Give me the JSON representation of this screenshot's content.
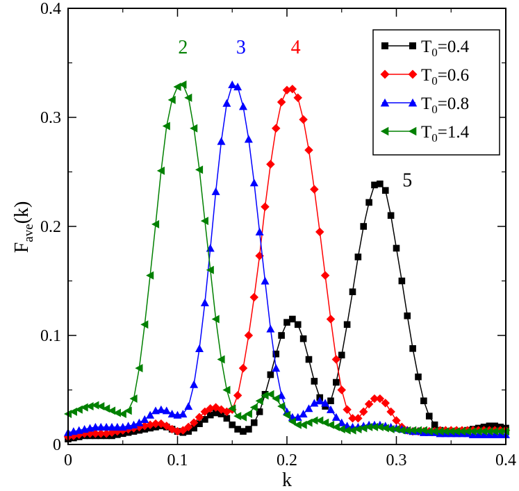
{
  "chart_data": {
    "type": "line",
    "xlabel": "k",
    "ylabel": "F",
    "ylabel_sub": "ave",
    "ylabel_suffix": "(k)",
    "xlim": [
      0,
      0.4
    ],
    "ylim": [
      0,
      0.4
    ],
    "x_ticks": [
      "0",
      "0.1",
      "0.2",
      "0.3",
      "0.4"
    ],
    "y_ticks": [
      "0",
      "0.1",
      "0.2",
      "0.3",
      "0.4"
    ],
    "grid": false,
    "legend_position": "top-right",
    "series": [
      {
        "name": "T0=0.4",
        "name_base": "T",
        "name_sub": "0",
        "name_value": "=0.4",
        "color": "#000000",
        "marker": "square",
        "x": [
          0,
          0.005,
          0.01,
          0.015,
          0.02,
          0.025,
          0.03,
          0.035,
          0.04,
          0.045,
          0.05,
          0.055,
          0.06,
          0.065,
          0.07,
          0.075,
          0.08,
          0.085,
          0.09,
          0.095,
          0.1,
          0.105,
          0.11,
          0.115,
          0.12,
          0.125,
          0.13,
          0.135,
          0.14,
          0.145,
          0.15,
          0.155,
          0.16,
          0.165,
          0.17,
          0.175,
          0.18,
          0.185,
          0.19,
          0.195,
          0.2,
          0.205,
          0.21,
          0.215,
          0.22,
          0.225,
          0.23,
          0.235,
          0.24,
          0.245,
          0.25,
          0.255,
          0.26,
          0.265,
          0.27,
          0.275,
          0.28,
          0.285,
          0.29,
          0.295,
          0.3,
          0.305,
          0.31,
          0.315,
          0.32,
          0.325,
          0.33,
          0.335,
          0.34,
          0.345,
          0.35,
          0.355,
          0.36,
          0.365,
          0.37,
          0.375,
          0.38,
          0.385,
          0.39,
          0.395,
          0.4
        ],
        "y": [
          0.005,
          0.006,
          0.007,
          0.008,
          0.008,
          0.008,
          0.008,
          0.008,
          0.008,
          0.009,
          0.01,
          0.011,
          0.012,
          0.013,
          0.014,
          0.015,
          0.016,
          0.017,
          0.016,
          0.014,
          0.012,
          0.011,
          0.012,
          0.015,
          0.019,
          0.023,
          0.027,
          0.029,
          0.028,
          0.024,
          0.018,
          0.014,
          0.012,
          0.014,
          0.02,
          0.03,
          0.046,
          0.064,
          0.083,
          0.1,
          0.112,
          0.115,
          0.11,
          0.097,
          0.078,
          0.058,
          0.043,
          0.035,
          0.04,
          0.057,
          0.082,
          0.11,
          0.14,
          0.172,
          0.2,
          0.222,
          0.238,
          0.239,
          0.233,
          0.21,
          0.18,
          0.15,
          0.118,
          0.088,
          0.062,
          0.04,
          0.026,
          0.018,
          0.013,
          0.011,
          0.011,
          0.011,
          0.012,
          0.013,
          0.014,
          0.015,
          0.016,
          0.017,
          0.017,
          0.016,
          0.015
        ]
      },
      {
        "name": "T0=0.6",
        "name_base": "T",
        "name_sub": "0",
        "name_value": "=0.6",
        "color": "#ff0000",
        "marker": "diamond",
        "x": [
          0,
          0.005,
          0.01,
          0.015,
          0.02,
          0.025,
          0.03,
          0.035,
          0.04,
          0.045,
          0.05,
          0.055,
          0.06,
          0.065,
          0.07,
          0.075,
          0.08,
          0.085,
          0.09,
          0.095,
          0.1,
          0.105,
          0.11,
          0.115,
          0.12,
          0.125,
          0.13,
          0.135,
          0.14,
          0.145,
          0.15,
          0.155,
          0.16,
          0.165,
          0.17,
          0.175,
          0.18,
          0.185,
          0.19,
          0.195,
          0.2,
          0.205,
          0.21,
          0.215,
          0.22,
          0.225,
          0.23,
          0.235,
          0.24,
          0.245,
          0.25,
          0.255,
          0.26,
          0.265,
          0.27,
          0.275,
          0.28,
          0.285,
          0.29,
          0.295,
          0.3,
          0.305,
          0.31,
          0.315,
          0.32,
          0.325,
          0.33,
          0.335,
          0.34,
          0.345,
          0.35,
          0.355,
          0.36,
          0.365,
          0.37,
          0.375,
          0.38,
          0.385,
          0.39,
          0.395,
          0.4
        ],
        "y": [
          0.007,
          0.008,
          0.009,
          0.01,
          0.01,
          0.01,
          0.01,
          0.01,
          0.011,
          0.012,
          0.013,
          0.014,
          0.015,
          0.016,
          0.017,
          0.018,
          0.019,
          0.019,
          0.017,
          0.014,
          0.012,
          0.013,
          0.016,
          0.02,
          0.025,
          0.03,
          0.033,
          0.034,
          0.032,
          0.03,
          0.032,
          0.045,
          0.07,
          0.1,
          0.135,
          0.173,
          0.218,
          0.257,
          0.29,
          0.314,
          0.325,
          0.326,
          0.318,
          0.298,
          0.27,
          0.234,
          0.195,
          0.155,
          0.115,
          0.078,
          0.05,
          0.032,
          0.024,
          0.024,
          0.03,
          0.037,
          0.042,
          0.042,
          0.038,
          0.03,
          0.022,
          0.016,
          0.013,
          0.012,
          0.012,
          0.012,
          0.012,
          0.012,
          0.013,
          0.013,
          0.013,
          0.013,
          0.013,
          0.013,
          0.013,
          0.013,
          0.013,
          0.013,
          0.013,
          0.013,
          0.013
        ]
      },
      {
        "name": "T0=0.8",
        "name_base": "T",
        "name_sub": "0",
        "name_value": "=0.8",
        "color": "#0000ff",
        "marker": "triangle-up",
        "x": [
          0,
          0.005,
          0.01,
          0.015,
          0.02,
          0.025,
          0.03,
          0.035,
          0.04,
          0.045,
          0.05,
          0.055,
          0.06,
          0.065,
          0.07,
          0.075,
          0.08,
          0.085,
          0.09,
          0.095,
          0.1,
          0.105,
          0.11,
          0.115,
          0.12,
          0.125,
          0.13,
          0.135,
          0.14,
          0.145,
          0.15,
          0.155,
          0.16,
          0.165,
          0.17,
          0.175,
          0.18,
          0.185,
          0.19,
          0.195,
          0.2,
          0.205,
          0.21,
          0.215,
          0.22,
          0.225,
          0.23,
          0.235,
          0.24,
          0.245,
          0.25,
          0.255,
          0.26,
          0.265,
          0.27,
          0.275,
          0.28,
          0.285,
          0.29,
          0.295,
          0.3,
          0.305,
          0.31,
          0.315,
          0.32,
          0.325,
          0.33,
          0.335,
          0.34,
          0.345,
          0.35,
          0.355,
          0.36,
          0.365,
          0.37,
          0.375,
          0.38,
          0.385,
          0.39,
          0.395,
          0.4
        ],
        "y": [
          0.011,
          0.012,
          0.013,
          0.014,
          0.015,
          0.016,
          0.016,
          0.016,
          0.016,
          0.016,
          0.016,
          0.017,
          0.018,
          0.02,
          0.023,
          0.027,
          0.031,
          0.032,
          0.031,
          0.028,
          0.027,
          0.028,
          0.035,
          0.055,
          0.088,
          0.13,
          0.18,
          0.232,
          0.278,
          0.313,
          0.33,
          0.328,
          0.31,
          0.28,
          0.24,
          0.195,
          0.15,
          0.106,
          0.07,
          0.045,
          0.03,
          0.025,
          0.025,
          0.028,
          0.033,
          0.038,
          0.04,
          0.038,
          0.032,
          0.025,
          0.02,
          0.017,
          0.016,
          0.016,
          0.017,
          0.018,
          0.018,
          0.018,
          0.017,
          0.016,
          0.015,
          0.014,
          0.013,
          0.012,
          0.012,
          0.011,
          0.011,
          0.011,
          0.01,
          0.01,
          0.01,
          0.01,
          0.01,
          0.01,
          0.009,
          0.009,
          0.009,
          0.009,
          0.009,
          0.009,
          0.009
        ]
      },
      {
        "name": "T0=1.4",
        "name_base": "T",
        "name_sub": "0",
        "name_value": "=1.4",
        "color": "#008000",
        "marker": "triangle-left",
        "x": [
          0,
          0.005,
          0.01,
          0.015,
          0.02,
          0.025,
          0.03,
          0.035,
          0.04,
          0.045,
          0.05,
          0.055,
          0.06,
          0.065,
          0.07,
          0.075,
          0.08,
          0.085,
          0.09,
          0.095,
          0.1,
          0.105,
          0.11,
          0.115,
          0.12,
          0.125,
          0.13,
          0.135,
          0.14,
          0.145,
          0.15,
          0.155,
          0.16,
          0.165,
          0.17,
          0.175,
          0.18,
          0.185,
          0.19,
          0.195,
          0.2,
          0.205,
          0.21,
          0.215,
          0.22,
          0.225,
          0.23,
          0.235,
          0.24,
          0.245,
          0.25,
          0.255,
          0.26,
          0.265,
          0.27,
          0.275,
          0.28,
          0.285,
          0.29,
          0.295,
          0.3,
          0.305,
          0.31,
          0.315,
          0.32,
          0.325,
          0.33,
          0.335,
          0.34,
          0.345,
          0.35,
          0.355,
          0.36,
          0.365,
          0.37,
          0.375,
          0.38,
          0.385,
          0.39,
          0.395,
          0.4
        ],
        "y": [
          0.028,
          0.03,
          0.032,
          0.034,
          0.035,
          0.036,
          0.035,
          0.033,
          0.031,
          0.029,
          0.028,
          0.031,
          0.042,
          0.07,
          0.11,
          0.155,
          0.202,
          0.251,
          0.292,
          0.316,
          0.328,
          0.33,
          0.318,
          0.29,
          0.252,
          0.205,
          0.16,
          0.115,
          0.078,
          0.05,
          0.033,
          0.026,
          0.025,
          0.028,
          0.034,
          0.04,
          0.045,
          0.046,
          0.042,
          0.035,
          0.027,
          0.021,
          0.018,
          0.018,
          0.02,
          0.022,
          0.022,
          0.02,
          0.018,
          0.016,
          0.014,
          0.013,
          0.013,
          0.014,
          0.015,
          0.016,
          0.016,
          0.016,
          0.015,
          0.014,
          0.014,
          0.013,
          0.013,
          0.013,
          0.013,
          0.013,
          0.012,
          0.012,
          0.012,
          0.012,
          0.012,
          0.012,
          0.012,
          0.012,
          0.012,
          0.012,
          0.012,
          0.012,
          0.012,
          0.012,
          0.012
        ]
      }
    ],
    "annotations": [
      {
        "text": "2",
        "x": 0.105,
        "y": 0.365,
        "color": "#008000"
      },
      {
        "text": "3",
        "x": 0.158,
        "y": 0.365,
        "color": "#0000ff"
      },
      {
        "text": "4",
        "x": 0.208,
        "y": 0.365,
        "color": "#ff0000"
      },
      {
        "text": "5",
        "x": 0.31,
        "y": 0.243,
        "color": "#000000"
      }
    ]
  }
}
